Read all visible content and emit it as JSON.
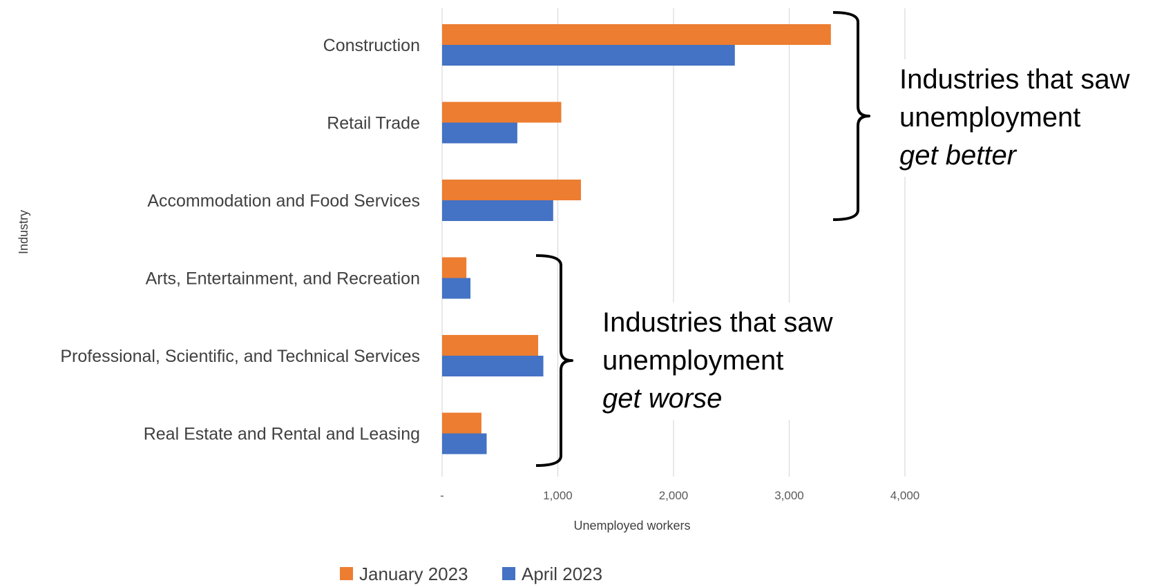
{
  "chart_data": {
    "type": "bar",
    "orientation": "horizontal",
    "categories": [
      "Construction",
      "Retail Trade",
      "Accommodation and Food Services",
      "Arts, Entertainment, and Recreation",
      "Professional, Scientific, and Technical Services",
      "Real Estate and Rental and Leasing"
    ],
    "series": [
      {
        "name": "January 2023",
        "color": "#ED7D31",
        "values": [
          3360,
          1030,
          1200,
          210,
          830,
          340
        ]
      },
      {
        "name": "April 2023",
        "color": "#4472C4",
        "values": [
          2530,
          650,
          960,
          245,
          875,
          385
        ]
      }
    ],
    "xlabel": "Unemployed workers",
    "ylabel": "Industry",
    "xlim": [
      0,
      4000
    ],
    "xticks": [
      0,
      1000,
      2000,
      3000,
      4000
    ],
    "xtick_labels": [
      "-",
      "1,000",
      "2,000",
      "3,000",
      "4,000"
    ],
    "grid": "vertical",
    "legend_position": "bottom",
    "annotations": [
      {
        "lines": [
          "Industries that saw",
          "unemployment"
        ],
        "emphasis": "get better",
        "brackets_categories": [
          0,
          2
        ]
      },
      {
        "lines": [
          "Industries that saw",
          "unemployment"
        ],
        "emphasis": "get worse",
        "brackets_categories": [
          3,
          5
        ]
      }
    ]
  }
}
